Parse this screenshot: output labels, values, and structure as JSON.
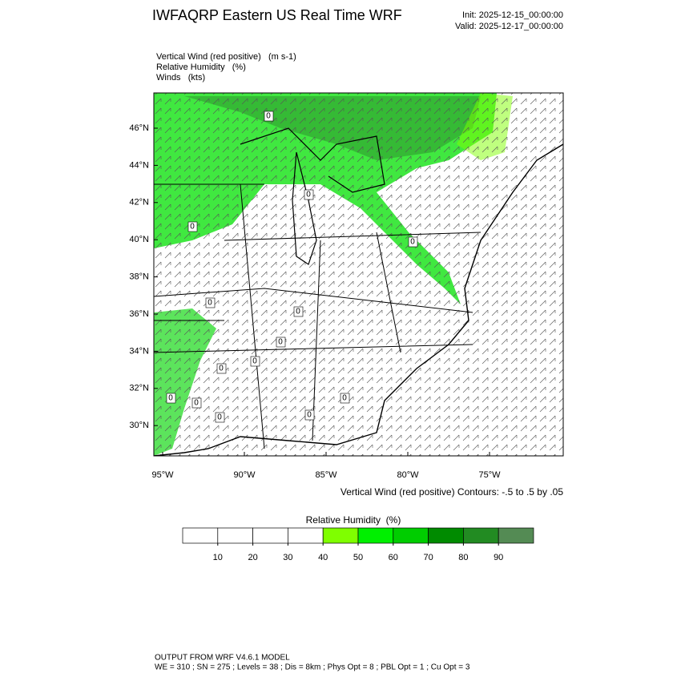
{
  "header": {
    "title": "IWFAQRP Eastern US Real Time WRF",
    "init": "Init: 2025-12-15_00:00:00",
    "valid": "Valid: 2025-12-17_00:00:00"
  },
  "fields": [
    "Vertical Wind (red positive)   (m s-1)",
    "Relative Humidity   (%)",
    "Winds   (kts)"
  ],
  "map": {
    "lat_labels": [
      "46°N",
      "44°N",
      "42°N",
      "40°N",
      "38°N",
      "36°N",
      "34°N",
      "32°N",
      "30°N"
    ],
    "lon_labels": [
      "95°W",
      "90°W",
      "85°W",
      "80°W",
      "75°W"
    ],
    "contour_labels": [
      "0",
      "0",
      "0",
      "0",
      "0",
      "0",
      "0",
      "0",
      "0",
      "0",
      "0",
      "0",
      "0",
      "0"
    ],
    "contour_note": "Vertical Wind (red positive) Contours: -.5 to .5 by .05"
  },
  "colorbar": {
    "title": "Relative Humidity  (%)",
    "colors": [
      "#ffffff",
      "#ffffff",
      "#ffffff",
      "#ffffff",
      "#7fff00",
      "#00f000",
      "#00cd00",
      "#008b00",
      "#228b22",
      "#548b54"
    ],
    "ticks": [
      10,
      20,
      30,
      40,
      50,
      60,
      70,
      80,
      90
    ]
  },
  "footer": {
    "line1": "OUTPUT FROM WRF V4.6.1 MODEL",
    "line2": "WE = 310 ; SN = 275 ; Levels = 38 ; Dis = 8km ; Phys Opt = 8 ; PBL Opt = 1 ; Cu Opt = 3"
  }
}
